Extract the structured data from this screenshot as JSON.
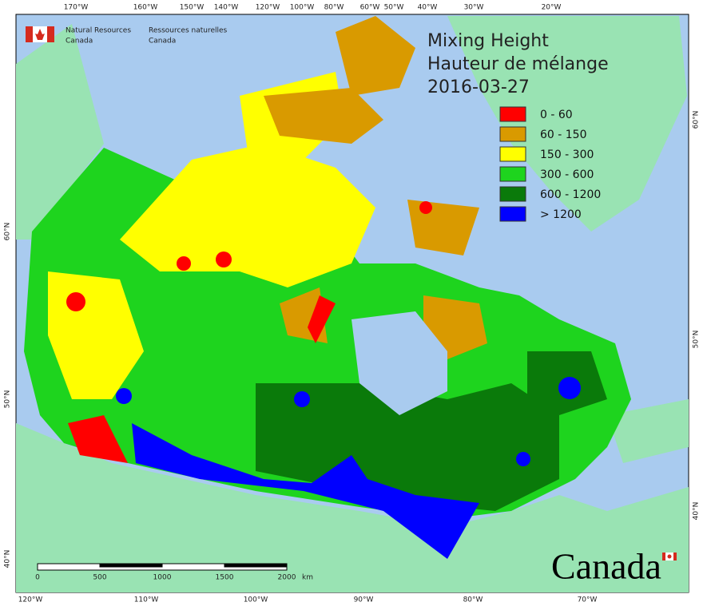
{
  "agency": {
    "en": [
      "Natural Resources",
      "Canada"
    ],
    "fr": [
      "Ressources naturelles",
      "Canada"
    ]
  },
  "title": [
    "Mixing Height",
    "Hauteur de mélange",
    "2016-03-27"
  ],
  "legend": [
    {
      "label": "0 - 60",
      "color": "#ff0000"
    },
    {
      "label": "60 - 150",
      "color": "#d99a00"
    },
    {
      "label": "150 - 300",
      "color": "#ffff00"
    },
    {
      "label": "300 - 600",
      "color": "#1ed41e"
    },
    {
      "label": "600 - 1200",
      "color": "#0a7a0a"
    },
    {
      "label": "> 1200",
      "color": "#0000ff"
    }
  ],
  "top_longitudes": [
    "170°W",
    "160°W",
    "150°W",
    "140°W",
    "120°W",
    "100°W",
    "80°W",
    "60°W",
    "50°W",
    "40°W",
    "30°W",
    "20°W"
  ],
  "bottom_longitudes": [
    "120°W",
    "110°W",
    "100°W",
    "90°W",
    "80°W",
    "70°W"
  ],
  "left_latitudes": [
    "60°N",
    "50°N",
    "40°N"
  ],
  "right_latitudes": [
    "60°N",
    "50°N",
    "40°N"
  ],
  "scale": {
    "ticks": [
      0,
      500,
      1000,
      1500,
      2000
    ],
    "unit": "km"
  },
  "wordmark": "Canada"
}
